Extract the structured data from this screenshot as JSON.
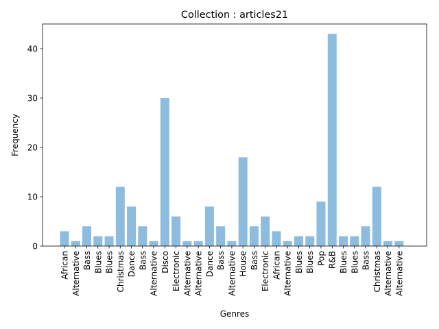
{
  "chart_data": {
    "type": "bar",
    "title": "Collection : articles21",
    "xlabel": "Genres",
    "ylabel": "Frequency",
    "ylim": [
      0,
      45
    ],
    "yticks": [
      0,
      10,
      20,
      30,
      40
    ],
    "grid": false,
    "bar_color": "#8dbcdf",
    "categories": [
      "African",
      "Alternative",
      "Bass",
      "Blues",
      "Blues",
      "Christmas",
      "Dance",
      "Bass",
      "Alternative",
      "Disco",
      "Electronic",
      "Alternative",
      "Alternative",
      "Dance",
      "Bass",
      "Alternative",
      "House",
      "Bass",
      "Electronic",
      "African",
      "Alternative",
      "Blues",
      "Blues",
      "Pop",
      "R&B",
      "Blues",
      "Blues",
      "Bass",
      "Christmas",
      "Alternative",
      "Alternative"
    ],
    "values": [
      3,
      1,
      4,
      2,
      2,
      12,
      8,
      4,
      1,
      30,
      6,
      1,
      1,
      8,
      4,
      1,
      18,
      4,
      6,
      3,
      1,
      2,
      2,
      9,
      43,
      2,
      2,
      4,
      12,
      1,
      1
    ]
  }
}
